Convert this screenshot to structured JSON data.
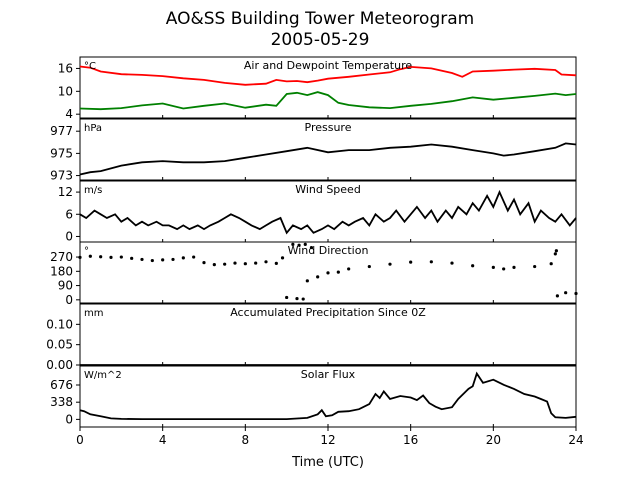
{
  "figure": {
    "title_line1": "AO&SS Building Tower Meteorogram",
    "title_line2": "2005-05-29",
    "xlabel": "Time (UTC)",
    "x_ticks": [
      "0",
      "4",
      "8",
      "12",
      "16",
      "20",
      "24"
    ]
  },
  "chart_data": [
    {
      "type": "line",
      "title": "Air and Dewpoint Temperature",
      "unit": "°C",
      "xlim": [
        0,
        24
      ],
      "ylim": [
        3,
        19
      ],
      "y_ticks": [
        4,
        10,
        16
      ],
      "y_tick_labels": [
        "4",
        "10",
        "16"
      ],
      "series": [
        {
          "color": "#ff0000",
          "x": [
            0,
            0.5,
            1,
            2,
            3,
            4,
            5,
            6,
            7,
            8,
            9,
            9.5,
            10,
            10.5,
            11,
            11.5,
            12,
            13,
            14,
            15,
            15.5,
            16,
            17,
            18,
            18.5,
            19,
            20,
            21,
            22,
            23,
            23.3,
            24
          ],
          "y": [
            16.5,
            16.2,
            15.2,
            14.5,
            14.3,
            14.0,
            13.4,
            13.0,
            12.2,
            11.7,
            12.0,
            13.0,
            12.6,
            12.7,
            12.4,
            12.8,
            13.3,
            13.8,
            14.4,
            15.0,
            15.8,
            16.4,
            16.0,
            14.8,
            13.8,
            15.2,
            15.4,
            15.7,
            15.9,
            15.6,
            14.4,
            14.2
          ]
        },
        {
          "color": "#008000",
          "x": [
            0,
            1,
            2,
            3,
            4,
            5,
            6,
            7,
            8,
            9,
            9.5,
            10,
            10.5,
            11,
            11.5,
            12,
            12.5,
            13,
            14,
            15,
            16,
            17,
            18,
            19,
            20,
            21,
            22,
            23,
            23.5,
            24
          ],
          "y": [
            5.5,
            5.3,
            5.6,
            6.3,
            6.8,
            5.5,
            6.2,
            6.8,
            5.7,
            6.5,
            6.2,
            9.3,
            9.6,
            9.0,
            9.8,
            9.0,
            7.0,
            6.4,
            5.8,
            5.6,
            6.2,
            6.7,
            7.4,
            8.4,
            7.8,
            8.3,
            8.8,
            9.4,
            9.0,
            9.3
          ]
        }
      ]
    },
    {
      "type": "line",
      "title": "Pressure",
      "unit": "hPa",
      "xlim": [
        0,
        24
      ],
      "ylim": [
        972.6,
        978.1
      ],
      "y_ticks": [
        973,
        975,
        977
      ],
      "y_tick_labels": [
        "973",
        "975",
        "977"
      ],
      "series": [
        {
          "color": "#000000",
          "x": [
            0,
            0.5,
            1,
            2,
            3,
            4,
            5,
            6,
            7,
            8,
            9,
            10,
            11,
            12,
            13,
            14,
            15,
            16,
            17,
            18,
            19,
            20,
            20.5,
            21,
            22,
            23,
            23.5,
            24
          ],
          "y": [
            973.1,
            973.3,
            973.4,
            973.9,
            974.2,
            974.3,
            974.2,
            974.2,
            974.3,
            974.6,
            974.9,
            975.2,
            975.5,
            975.1,
            975.3,
            975.3,
            975.5,
            975.6,
            975.8,
            975.6,
            975.3,
            975.0,
            974.8,
            974.9,
            975.2,
            975.5,
            975.9,
            975.8
          ]
        }
      ]
    },
    {
      "type": "line",
      "title": "Wind Speed",
      "unit": "m/s",
      "xlim": [
        0,
        24
      ],
      "ylim": [
        -1.5,
        15
      ],
      "y_ticks": [
        0,
        6,
        12
      ],
      "y_tick_labels": [
        "0",
        "6",
        "12"
      ],
      "series": [
        {
          "color": "#000000",
          "x": [
            0,
            0.3,
            0.7,
            1.0,
            1.3,
            1.7,
            2.0,
            2.3,
            2.7,
            3.0,
            3.3,
            3.7,
            4.0,
            4.3,
            4.7,
            5.0,
            5.3,
            5.7,
            6.0,
            6.3,
            6.7,
            7.0,
            7.3,
            7.7,
            8.0,
            8.3,
            8.7,
            9.0,
            9.3,
            9.7,
            10.0,
            10.3,
            10.7,
            11.0,
            11.3,
            11.7,
            12.0,
            12.3,
            12.7,
            13.0,
            13.3,
            13.7,
            14.0,
            14.3,
            14.7,
            15.0,
            15.3,
            15.7,
            16.0,
            16.3,
            16.7,
            17.0,
            17.3,
            17.7,
            18.0,
            18.3,
            18.7,
            19.0,
            19.3,
            19.7,
            20.0,
            20.3,
            20.7,
            21.0,
            21.3,
            21.7,
            22.0,
            22.3,
            22.7,
            23.0,
            23.3,
            23.7,
            24.0
          ],
          "y": [
            6,
            5,
            7,
            6,
            5,
            6,
            4,
            5,
            3,
            4,
            3,
            4,
            3,
            3,
            2,
            3,
            2,
            3,
            2,
            3,
            4,
            5,
            6,
            5,
            4,
            3,
            2,
            3,
            4,
            5,
            1,
            3,
            2,
            3,
            1,
            2,
            3,
            2,
            4,
            3,
            4,
            5,
            3,
            6,
            4,
            5,
            7,
            4,
            6,
            8,
            5,
            7,
            4,
            7,
            5,
            8,
            6,
            9,
            7,
            11,
            8,
            12,
            7,
            10,
            6,
            9,
            4,
            7,
            5,
            4,
            6,
            3,
            5
          ]
        }
      ]
    },
    {
      "type": "scatter",
      "title": "Wind Direction",
      "unit": "°",
      "xlim": [
        0,
        24
      ],
      "ylim": [
        -20,
        365
      ],
      "y_ticks": [
        0,
        90,
        180,
        270
      ],
      "y_tick_labels": [
        "0",
        "90",
        "180",
        "270"
      ],
      "series": [
        {
          "color": "#000000",
          "x": [
            0,
            0.5,
            1,
            1.5,
            2,
            2.5,
            3,
            3.5,
            4,
            4.5,
            5,
            5.5,
            6,
            6.5,
            7,
            7.5,
            8,
            8.5,
            9,
            9.5,
            9.8,
            10,
            10.5,
            10.8,
            11,
            11.5,
            12,
            12.5,
            13,
            14,
            15,
            16,
            17,
            18,
            19,
            20,
            20.5,
            21,
            22,
            22.8,
            23.1,
            23.5,
            24
          ],
          "y": [
            268,
            275,
            272,
            268,
            270,
            262,
            255,
            248,
            252,
            255,
            265,
            270,
            235,
            222,
            225,
            232,
            228,
            232,
            240,
            230,
            265,
            15,
            8,
            5,
            120,
            145,
            170,
            175,
            195,
            210,
            225,
            238,
            240,
            232,
            215,
            205,
            195,
            205,
            210,
            228,
            25,
            45,
            40
          ]
        },
        {
          "color": "#000000",
          "x": [
            10.3,
            10.6,
            10.9,
            11.2,
            23.0,
            23.05
          ],
          "y": [
            350,
            345,
            350,
            330,
            290,
            310
          ]
        }
      ]
    },
    {
      "type": "line",
      "title": "Accumulated Precipitation Since 0Z",
      "unit": "mm",
      "xlim": [
        0,
        24
      ],
      "ylim": [
        0,
        0.15
      ],
      "y_ticks": [
        0.0,
        0.05,
        0.1
      ],
      "y_tick_labels": [
        "0.00",
        "0.05",
        "0.10"
      ],
      "series": [
        {
          "color": "#000000",
          "x": [
            0,
            24
          ],
          "y": [
            0,
            0
          ]
        }
      ]
    },
    {
      "type": "line",
      "title": "Solar Flux",
      "unit": "W/m^2",
      "xlim": [
        0,
        24
      ],
      "ylim": [
        -150,
        1050
      ],
      "y_ticks": [
        0,
        338,
        676
      ],
      "y_tick_labels": [
        "0",
        "338",
        "676"
      ],
      "series": [
        {
          "color": "#000000",
          "x": [
            0,
            0.2,
            0.5,
            1,
            1.5,
            2,
            3,
            4,
            5,
            6,
            7,
            8,
            9,
            10,
            11,
            11.5,
            11.7,
            11.9,
            12.2,
            12.5,
            13,
            13.5,
            14,
            14.3,
            14.5,
            14.7,
            15,
            15.5,
            16,
            16.3,
            16.6,
            16.9,
            17.2,
            17.5,
            18,
            18.3,
            18.6,
            18.8,
            19,
            19.2,
            19.5,
            20,
            20.5,
            21,
            21.5,
            22,
            22.3,
            22.6,
            22.8,
            23,
            23.5,
            24
          ],
          "y": [
            180,
            160,
            100,
            60,
            20,
            10,
            5,
            5,
            5,
            5,
            5,
            5,
            5,
            5,
            30,
            100,
            180,
            60,
            80,
            150,
            160,
            200,
            300,
            500,
            420,
            550,
            400,
            460,
            430,
            380,
            470,
            320,
            250,
            200,
            240,
            400,
            520,
            600,
            650,
            900,
            720,
            780,
            680,
            600,
            500,
            450,
            400,
            350,
            120,
            40,
            30,
            50
          ]
        }
      ]
    }
  ]
}
